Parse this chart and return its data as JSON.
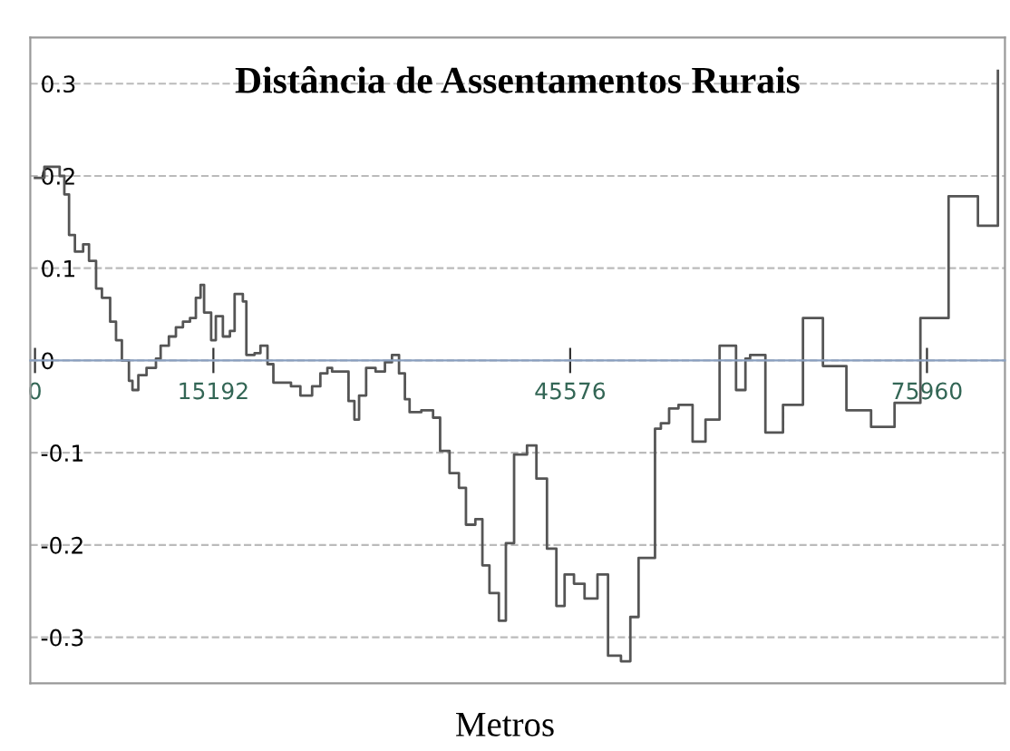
{
  "chart_data": {
    "type": "step",
    "title": "Distância de Assentamentos Rurais",
    "xlabel": "Metros",
    "x": [
      0,
      800,
      1500,
      2100,
      2500,
      2900,
      3400,
      4100,
      4600,
      5200,
      5700,
      6400,
      6900,
      7400,
      8000,
      8300,
      8800,
      9500,
      10300,
      10700,
      11400,
      12000,
      12600,
      13200,
      13700,
      14100,
      14400,
      15000,
      15400,
      16000,
      16600,
      17000,
      17700,
      18000,
      18700,
      19200,
      19800,
      20300,
      21800,
      22600,
      23600,
      24300,
      24900,
      25300,
      25900,
      26700,
      27200,
      27600,
      28200,
      29000,
      29800,
      30400,
      31000,
      31500,
      31900,
      32900,
      33900,
      34500,
      35300,
      36100,
      36700,
      37500,
      38100,
      38700,
      39500,
      40100,
      40800,
      41900,
      42700,
      43600,
      44400,
      45100,
      45900,
      46800,
      47900,
      48800,
      49900,
      50700,
      51400,
      52800,
      53300,
      54000,
      54800,
      56000,
      57100,
      58300,
      59700,
      60500,
      60900,
      62200,
      63700,
      65400,
      67100,
      69100,
      71200,
      73200,
      75400,
      77800,
      80300,
      82000
    ],
    "values": [
      0.198,
      0.21,
      0.21,
      0.2,
      0.18,
      0.136,
      0.118,
      0.126,
      0.108,
      0.078,
      0.068,
      0.042,
      0.022,
      0,
      -0.022,
      -0.032,
      -0.016,
      -0.008,
      0.002,
      0.016,
      0.026,
      0.036,
      0.042,
      0.046,
      0.068,
      0.082,
      0.052,
      0.022,
      0.048,
      0.026,
      0.032,
      0.072,
      0.064,
      0.006,
      0.008,
      0.016,
      -0.004,
      -0.024,
      -0.028,
      -0.038,
      -0.028,
      -0.014,
      -0.008,
      -0.012,
      -0.012,
      -0.044,
      -0.064,
      -0.038,
      -0.008,
      -0.012,
      -0.002,
      0.006,
      -0.014,
      -0.042,
      -0.056,
      -0.054,
      -0.062,
      -0.098,
      -0.122,
      -0.138,
      -0.178,
      -0.172,
      -0.222,
      -0.252,
      -0.282,
      -0.198,
      -0.102,
      -0.092,
      -0.128,
      -0.204,
      -0.266,
      -0.232,
      -0.242,
      -0.258,
      -0.232,
      -0.32,
      -0.326,
      -0.278,
      -0.214,
      -0.074,
      -0.068,
      -0.052,
      -0.048,
      -0.088,
      -0.064,
      0.016,
      -0.032,
      0.002,
      0.006,
      -0.078,
      -0.048,
      0.046,
      -0.006,
      -0.054,
      -0.072,
      -0.046,
      0.046,
      0.178,
      0.146,
      0.314
    ],
    "color": "#555555",
    "xlim": [
      -400,
      82600
    ],
    "ylim": [
      -0.35,
      0.35
    ],
    "xticks": [
      0,
      15192,
      45576,
      75960
    ],
    "yticks": [
      -0.3,
      -0.2,
      -0.1,
      0,
      0.1,
      0.2,
      0.3
    ],
    "grid": "y",
    "line_style": "solid"
  }
}
